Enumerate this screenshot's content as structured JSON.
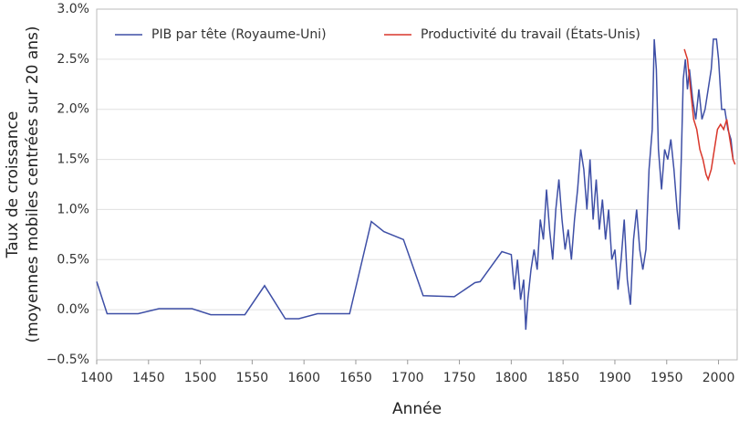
{
  "chart_data": {
    "type": "line",
    "xlabel": "Année",
    "ylabel": [
      "Taux de croissance",
      "(moyennes mobiles centrées sur 20 ans)"
    ],
    "xlim": [
      1400,
      2018
    ],
    "xticks": [
      1400,
      1450,
      1500,
      1550,
      1600,
      1650,
      1700,
      1750,
      1800,
      1850,
      1900,
      1950,
      2000
    ],
    "ylim": [
      -0.5,
      3.0
    ],
    "yticks": [
      {
        "value": -0.5,
        "label": "−0.5%"
      },
      {
        "value": 0,
        "label": "0.0%"
      },
      {
        "value": 0.5,
        "label": "0.5%"
      },
      {
        "value": 1.0,
        "label": "1.0%"
      },
      {
        "value": 1.5,
        "label": "1.5%"
      },
      {
        "value": 2.0,
        "label": "2.0%"
      },
      {
        "value": 2.5,
        "label": "2.5%"
      },
      {
        "value": 3.0,
        "label": "3.0%"
      }
    ],
    "grid": true,
    "legend": "top-left",
    "series": [
      {
        "name": "PIB par tête (Royaume-Uni)",
        "color": "#3e4fa6",
        "x": [
          1400,
          1410,
          1440,
          1460,
          1492,
          1510,
          1543,
          1562,
          1582,
          1595,
          1613,
          1644,
          1665,
          1677,
          1696,
          1715,
          1745,
          1765,
          1770,
          1791,
          1797,
          1800,
          1803,
          1806,
          1809,
          1812,
          1814,
          1816,
          1819,
          1822,
          1825,
          1828,
          1831,
          1834,
          1837,
          1840,
          1843,
          1846,
          1849,
          1852,
          1855,
          1858,
          1861,
          1864,
          1867,
          1870,
          1873,
          1876,
          1879,
          1882,
          1885,
          1888,
          1891,
          1894,
          1897,
          1900,
          1903,
          1906,
          1909,
          1912,
          1915,
          1918,
          1921,
          1924,
          1927,
          1930,
          1933,
          1936,
          1938,
          1940,
          1942,
          1945,
          1948,
          1951,
          1954,
          1957,
          1960,
          1962,
          1964,
          1966,
          1968,
          1970,
          1972,
          1975,
          1978,
          1981,
          1984,
          1987,
          1990,
          1993,
          1995,
          1998,
          2000,
          2003,
          2006,
          2009,
          2012,
          2014
        ],
        "values": [
          0.28,
          -0.04,
          -0.04,
          0.01,
          0.01,
          -0.05,
          -0.05,
          0.24,
          -0.09,
          -0.09,
          -0.04,
          -0.04,
          0.88,
          0.78,
          0.7,
          0.14,
          0.13,
          0.27,
          0.28,
          0.58,
          0.56,
          0.55,
          0.2,
          0.5,
          0.1,
          0.3,
          -0.2,
          0.1,
          0.4,
          0.6,
          0.4,
          0.9,
          0.7,
          1.2,
          0.8,
          0.5,
          1.0,
          1.3,
          0.9,
          0.6,
          0.8,
          0.5,
          0.9,
          1.2,
          1.6,
          1.4,
          1.0,
          1.5,
          0.9,
          1.3,
          0.8,
          1.1,
          0.7,
          1.0,
          0.5,
          0.6,
          0.2,
          0.5,
          0.9,
          0.3,
          0.05,
          0.7,
          1.0,
          0.6,
          0.4,
          0.6,
          1.4,
          1.8,
          2.7,
          2.4,
          1.6,
          1.2,
          1.6,
          1.5,
          1.7,
          1.4,
          1.0,
          0.8,
          1.5,
          2.3,
          2.5,
          2.2,
          2.4,
          2.1,
          1.9,
          2.2,
          1.9,
          2.0,
          2.2,
          2.4,
          2.7,
          2.7,
          2.5,
          2.0,
          2.0,
          1.8,
          1.7,
          1.5
        ]
      },
      {
        "name": "Productivité du travail (États-Unis)",
        "color": "#d9372b",
        "x": [
          1967,
          1970,
          1973,
          1976,
          1979,
          1982,
          1985,
          1988,
          1990,
          1993,
          1996,
          1999,
          2002,
          2005,
          2008,
          2011,
          2014,
          2016
        ],
        "values": [
          2.6,
          2.5,
          2.2,
          1.9,
          1.8,
          1.6,
          1.5,
          1.35,
          1.3,
          1.4,
          1.6,
          1.8,
          1.85,
          1.8,
          1.9,
          1.7,
          1.5,
          1.45
        ]
      }
    ]
  }
}
